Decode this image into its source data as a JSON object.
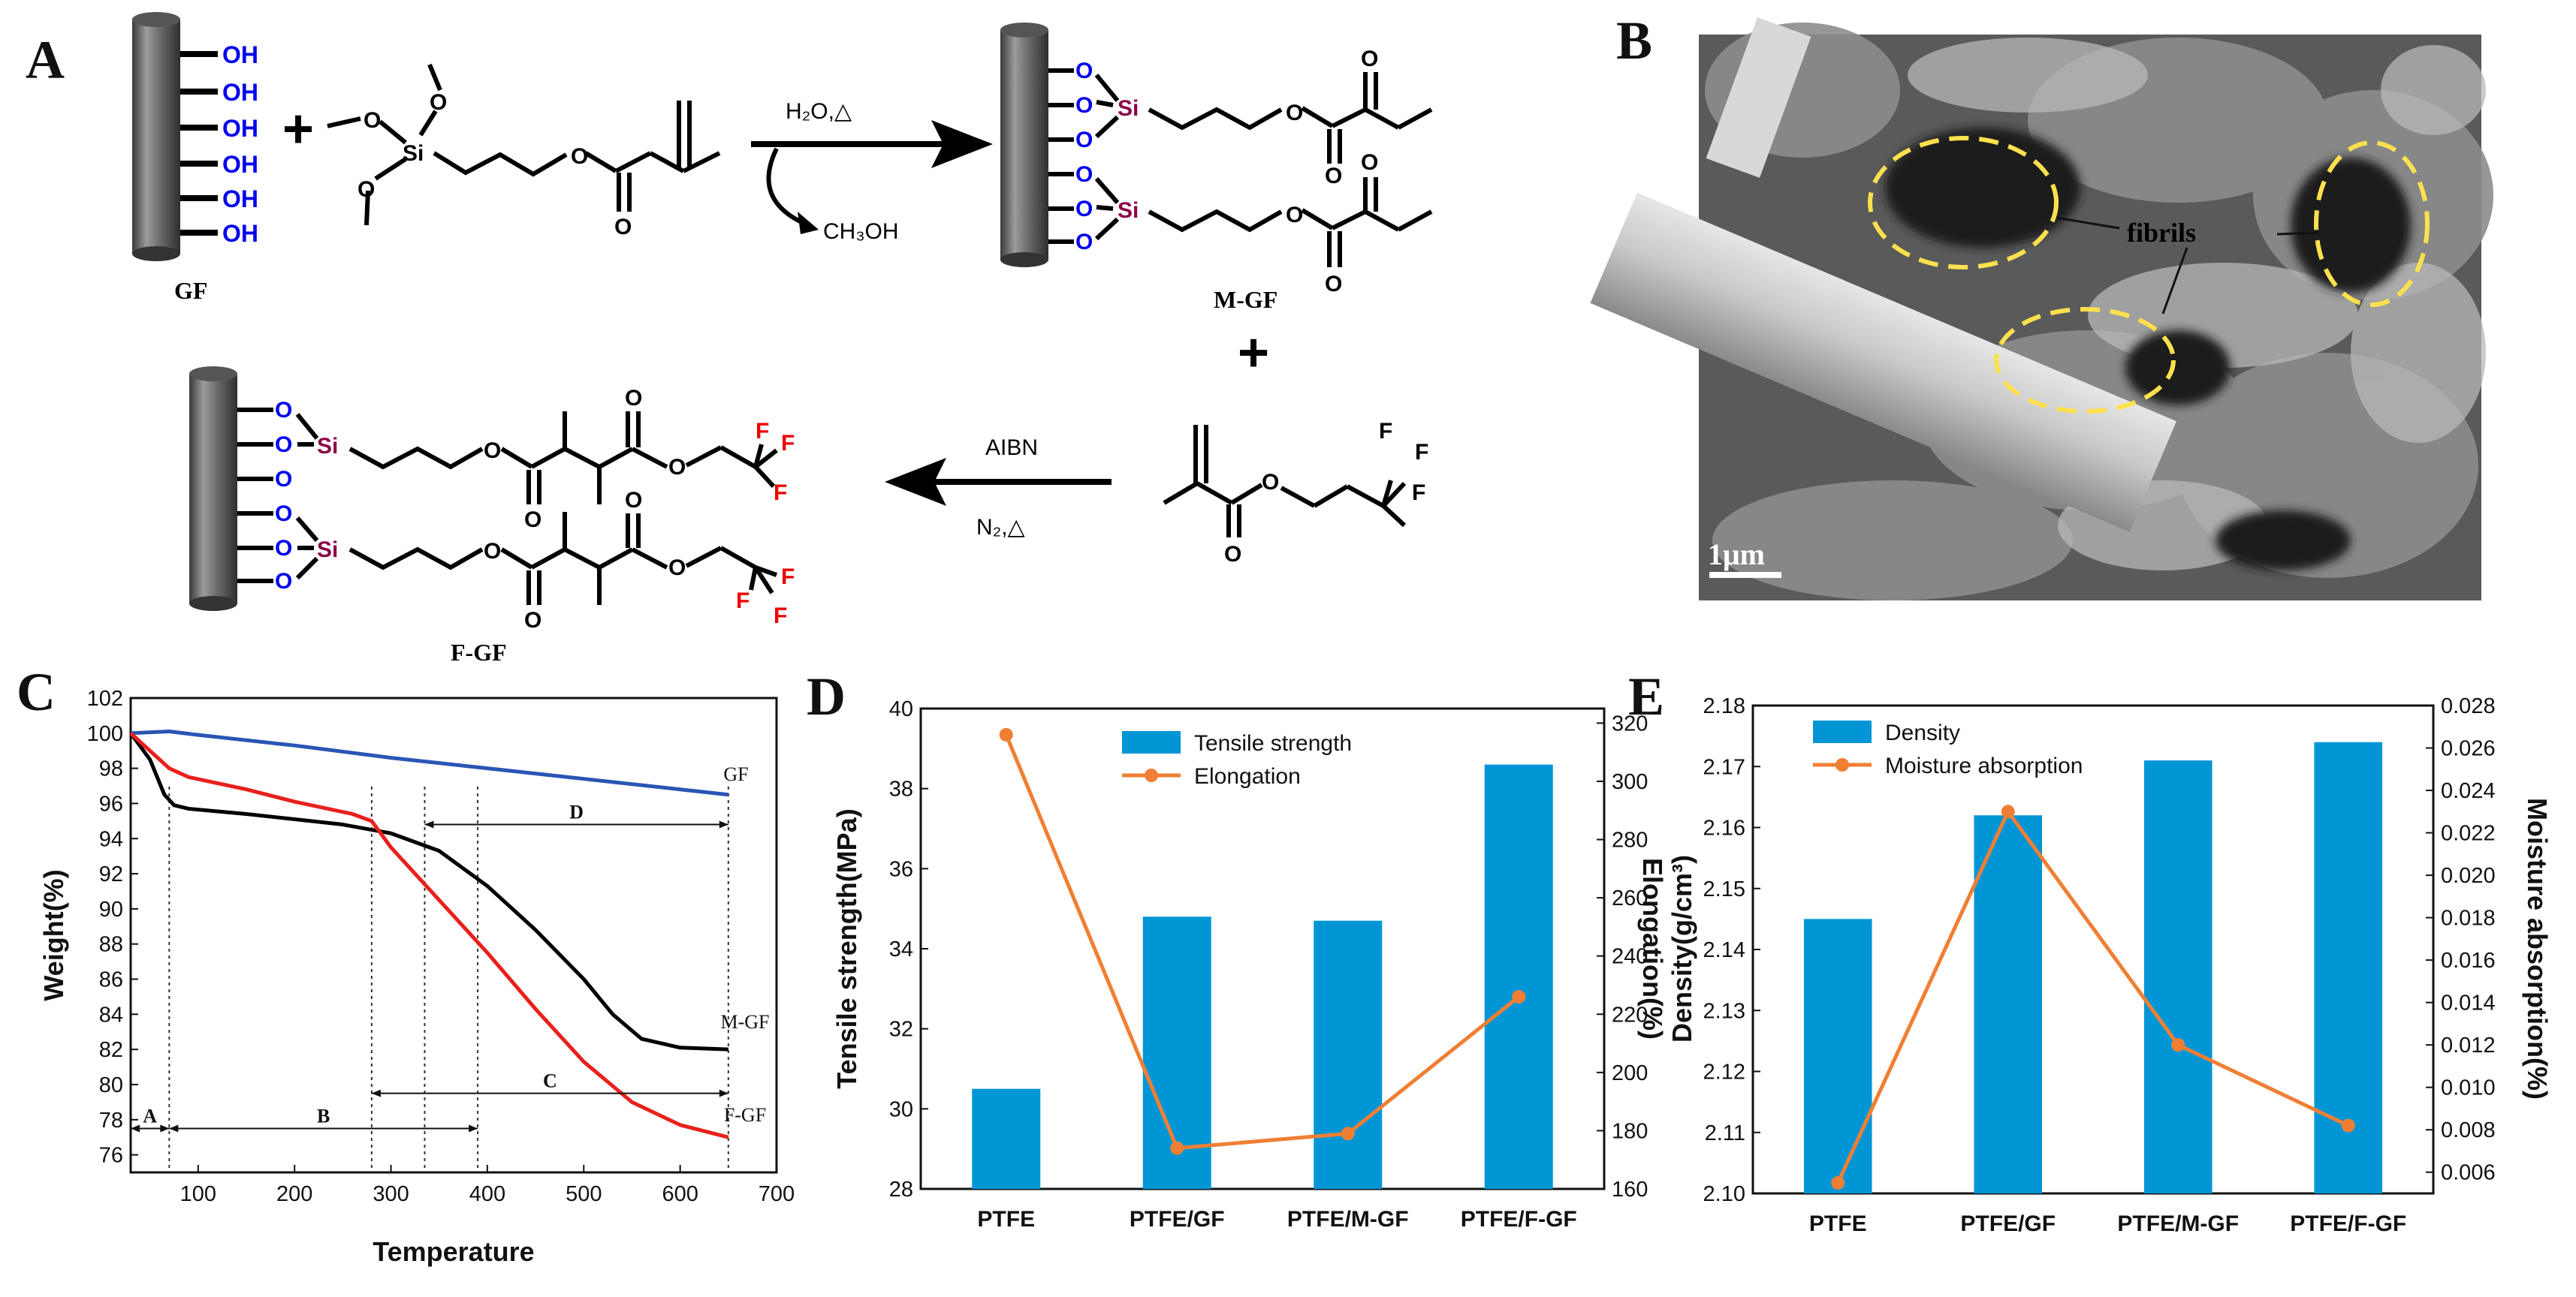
{
  "panels": {
    "A": "A",
    "B": "B",
    "C": "C",
    "D": "D",
    "E": "E"
  },
  "scheme": {
    "oh": "OH",
    "o": "O",
    "si": "Si",
    "f": "F",
    "plus": "+",
    "gf": "GF",
    "mgf": "M-GF",
    "fgf": "F-GF",
    "cond1": "H₂O,△",
    "byproduct": "CH₃OH",
    "aibn": "AIBN",
    "cond2": "N₂,△",
    "colors": {
      "oh": "#0000ee",
      "o": "#0000ee",
      "si": "#8b0045",
      "f": "#ee0000"
    }
  },
  "sem": {
    "fibrils_label": "fibrils",
    "scalebar_label": "1μm",
    "circle_color": "#ffe14d"
  },
  "chart_data": [
    {
      "panel": "C",
      "type": "line",
      "xlabel": "Temperature",
      "ylabel": "Weight(%)",
      "xlim": [
        30,
        700
      ],
      "ylim": [
        75,
        102
      ],
      "xticks": [
        100,
        200,
        300,
        400,
        500,
        600,
        700
      ],
      "xtick_labels": [
        "100",
        "200",
        "300",
        "400",
        "500",
        "600",
        "700"
      ],
      "yticks": [
        76,
        78,
        80,
        82,
        84,
        86,
        88,
        90,
        92,
        94,
        96,
        98,
        100,
        102
      ],
      "series": [
        {
          "name": "GF",
          "color": "#2a55b5",
          "x": [
            30,
            70,
            100,
            150,
            200,
            300,
            400,
            500,
            600,
            650
          ],
          "y": [
            100,
            100.1,
            99.9,
            99.6,
            99.3,
            98.6,
            98.0,
            97.4,
            96.8,
            96.5
          ]
        },
        {
          "name": "M-GF",
          "color": "#000000",
          "x": [
            30,
            50,
            65,
            75,
            90,
            150,
            250,
            300,
            350,
            400,
            450,
            500,
            530,
            560,
            600,
            650
          ],
          "y": [
            100,
            98.5,
            96.5,
            95.9,
            95.7,
            95.4,
            94.8,
            94.3,
            93.3,
            91.3,
            88.8,
            86.0,
            84.0,
            82.6,
            82.1,
            82.0
          ]
        },
        {
          "name": "F-GF",
          "color": "#e8201c",
          "x": [
            30,
            50,
            70,
            90,
            150,
            200,
            260,
            280,
            300,
            350,
            400,
            450,
            500,
            550,
            600,
            650
          ],
          "y": [
            100,
            99.0,
            98.0,
            97.5,
            96.8,
            96.1,
            95.4,
            95.0,
            93.5,
            90.5,
            87.5,
            84.3,
            81.3,
            79.0,
            77.7,
            77.0
          ]
        }
      ],
      "markers": [
        70,
        280,
        335,
        390,
        650
      ],
      "ranges": [
        {
          "label": "A",
          "from": 30,
          "to": 70,
          "y": 77.5
        },
        {
          "label": "B",
          "from": 70,
          "to": 390,
          "y": 77.5
        },
        {
          "label": "C",
          "from": 280,
          "to": 650,
          "y": 79.5
        },
        {
          "label": "D",
          "from": 335,
          "to": 650,
          "y": 94.8
        }
      ]
    },
    {
      "panel": "D",
      "type": "bar",
      "categories": [
        "PTFE",
        "PTFE/GF",
        "PTFE/M-GF",
        "PTFE/F-GF"
      ],
      "ylabel": "Tensile strength(MPa)",
      "y2label": "Elongation(%)",
      "ylim": [
        28,
        40
      ],
      "y2lim": [
        160,
        325
      ],
      "yticks": [
        28,
        30,
        32,
        34,
        36,
        38,
        40
      ],
      "y2ticks": [
        160,
        180,
        200,
        220,
        240,
        260,
        280,
        300,
        320
      ],
      "series": [
        {
          "name": "Tensile strength",
          "kind": "bar",
          "color": "#0096d6",
          "values": [
            30.5,
            34.8,
            34.7,
            38.6
          ]
        },
        {
          "name": "Elongation",
          "kind": "line",
          "axis": "right",
          "color": "#f07f34",
          "values": [
            316,
            174,
            179,
            226
          ]
        }
      ],
      "legend": "top-center"
    },
    {
      "panel": "E",
      "type": "bar",
      "categories": [
        "PTFE",
        "PTFE/GF",
        "PTFE/M-GF",
        "PTFE/F-GF"
      ],
      "ylabel": "Density(g/cm³)",
      "y2label": "Moisture absorption(%)",
      "ylim": [
        2.1,
        2.18
      ],
      "y2lim": [
        0.005,
        0.028
      ],
      "yticks": [
        2.1,
        2.11,
        2.12,
        2.13,
        2.14,
        2.15,
        2.16,
        2.17,
        2.18
      ],
      "ytick_labels": [
        "2.10",
        "2.11",
        "2.12",
        "2.13",
        "2.14",
        "2.15",
        "2.16",
        "2.17",
        "2.18"
      ],
      "y2ticks": [
        0.006,
        0.008,
        0.01,
        0.012,
        0.014,
        0.016,
        0.018,
        0.02,
        0.022,
        0.024,
        0.026,
        0.028
      ],
      "y2tick_labels": [
        "0.006",
        "0.008",
        "0.010",
        "0.012",
        "0.014",
        "0.016",
        "0.018",
        "0.020",
        "0.022",
        "0.024",
        "0.026",
        "0.028"
      ],
      "series": [
        {
          "name": "Density",
          "kind": "bar",
          "color": "#0096d6",
          "values": [
            2.145,
            2.162,
            2.171,
            2.174
          ]
        },
        {
          "name": "Moisture absorption",
          "kind": "line",
          "axis": "right",
          "color": "#f07f34",
          "values": [
            0.0055,
            0.023,
            0.012,
            0.0082
          ]
        }
      ],
      "legend": "top-left"
    }
  ]
}
